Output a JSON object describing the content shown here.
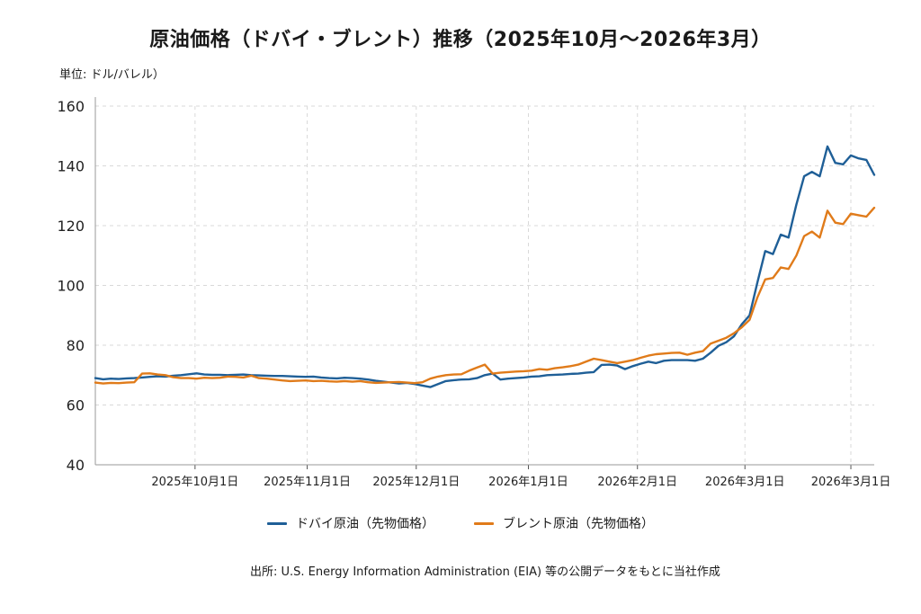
{
  "title": "原油価格（ドバイ・ブレント）推移（2025年10月〜2026年3月）",
  "unit_label": "単位: ドル/バレル）",
  "source": "出所: U.S. Energy Information Administration (EIA) 等の公開データをもとに当社作成",
  "colors": {
    "dubai": "#1f5f97",
    "brent": "#e07b1a",
    "grid": "#d9d9d9",
    "axis": "#555555"
  },
  "chart_data": {
    "type": "line",
    "title": "原油価格（ドバイ・ブレント）推移（2025年10月〜2026年3月）",
    "xlabel": "",
    "ylabel": "単位: ドル/バレル）",
    "ylim": [
      40,
      160
    ],
    "yticks": [
      40,
      60,
      80,
      100,
      120,
      140,
      160
    ],
    "xlim": [
      0,
      100
    ],
    "xticks": [
      {
        "x": 12.8,
        "label": "2025年10月1日"
      },
      {
        "x": 27.2,
        "label": "2025年11月1日"
      },
      {
        "x": 41.2,
        "label": "2025年12月1日"
      },
      {
        "x": 55.6,
        "label": "2026年1月1日"
      },
      {
        "x": 69.6,
        "label": "2026年2月1日"
      },
      {
        "x": 83.4,
        "label": "2026年3月1日"
      },
      {
        "x": 97.0,
        "label": "2026年3月1日"
      }
    ],
    "grid": true,
    "legend_position": "bottom",
    "series": [
      {
        "name": "ドバイ原油（先物価格）",
        "color": "#1f5f97",
        "x": [
          0,
          1,
          2,
          3,
          4,
          5,
          6,
          7,
          8,
          9,
          10,
          11,
          12,
          13,
          14,
          15,
          16,
          17,
          18,
          19,
          20,
          21,
          22,
          23,
          24,
          25,
          26,
          27,
          28,
          29,
          30,
          31,
          32,
          33,
          34,
          35,
          36,
          37,
          38,
          39,
          40,
          41,
          42,
          43,
          44,
          45,
          46,
          47,
          48,
          49,
          50,
          51,
          52,
          53,
          54,
          55,
          56,
          57,
          58,
          59,
          60,
          61,
          62,
          63,
          64,
          65,
          66,
          67,
          68,
          69,
          70,
          71,
          72,
          73,
          74,
          75,
          76,
          77,
          78,
          79,
          80,
          81,
          82,
          83,
          84,
          85,
          86,
          87,
          88,
          89,
          90,
          91,
          92,
          93,
          94,
          95,
          96,
          97,
          98,
          99,
          100
        ],
        "y": [
          69,
          68.6,
          68.8,
          68.7,
          68.9,
          69,
          69.2,
          69.4,
          69.6,
          69.5,
          69.8,
          70,
          70.3,
          70.6,
          70.2,
          70.1,
          70.1,
          70,
          70.1,
          70.2,
          70,
          69.9,
          69.8,
          69.7,
          69.7,
          69.6,
          69.5,
          69.4,
          69.5,
          69.2,
          69,
          68.9,
          69.1,
          69,
          68.8,
          68.5,
          68.1,
          67.8,
          67.5,
          67.2,
          67.4,
          67,
          66.5,
          66,
          67,
          68,
          68.3,
          68.5,
          68.6,
          69,
          70,
          70.5,
          68.5,
          68.8,
          69,
          69.2,
          69.5,
          69.6,
          70,
          70.1,
          70.2,
          70.4,
          70.5,
          70.8,
          71,
          73.4,
          73.5,
          73.2,
          72,
          73,
          73.8,
          74.5,
          74,
          74.8,
          75,
          75,
          75,
          74.8,
          75.5,
          77.5,
          79.8,
          81,
          83,
          87,
          90,
          101,
          111.5,
          110.5,
          117,
          116,
          127,
          136.5,
          138,
          136.5,
          146.5,
          141,
          140.5,
          143.5,
          142.5,
          142,
          137
        ]
      },
      {
        "name": "ブレント原油（先物価格）",
        "color": "#e07b1a",
        "x": [
          0,
          1,
          2,
          3,
          4,
          5,
          6,
          7,
          8,
          9,
          10,
          11,
          12,
          13,
          14,
          15,
          16,
          17,
          18,
          19,
          20,
          21,
          22,
          23,
          24,
          25,
          26,
          27,
          28,
          29,
          30,
          31,
          32,
          33,
          34,
          35,
          36,
          37,
          38,
          39,
          40,
          41,
          42,
          43,
          44,
          45,
          46,
          47,
          48,
          49,
          50,
          51,
          52,
          53,
          54,
          55,
          56,
          57,
          58,
          59,
          60,
          61,
          62,
          63,
          64,
          65,
          66,
          67,
          68,
          69,
          70,
          71,
          72,
          73,
          74,
          75,
          76,
          77,
          78,
          79,
          80,
          81,
          82,
          83,
          84,
          85,
          86,
          87,
          88,
          89,
          90,
          91,
          92,
          93,
          94,
          95,
          96,
          97,
          98,
          99,
          100
        ],
        "y": [
          67.5,
          67.2,
          67.4,
          67.3,
          67.5,
          67.6,
          70.5,
          70.6,
          70.2,
          70,
          69.3,
          69,
          69,
          68.8,
          69.1,
          69,
          69.1,
          69.5,
          69.4,
          69.2,
          69.8,
          69,
          68.8,
          68.5,
          68.2,
          68,
          68.1,
          68.2,
          68,
          68.1,
          67.9,
          67.8,
          68,
          67.8,
          68,
          67.6,
          67.4,
          67.5,
          67.6,
          67.7,
          67.5,
          67.3,
          67.6,
          68.8,
          69.5,
          70,
          70.2,
          70.3,
          71.5,
          72.5,
          73.5,
          70.5,
          70.8,
          71,
          71.2,
          71.3,
          71.5,
          72,
          71.8,
          72.3,
          72.6,
          73,
          73.5,
          74.5,
          75.5,
          75,
          74.5,
          74,
          74.5,
          75,
          75.8,
          76.5,
          77,
          77.2,
          77.4,
          77.5,
          76.8,
          77.5,
          78,
          80.5,
          81.5,
          82.5,
          84,
          86,
          88.5,
          96,
          102,
          102.5,
          106,
          105.5,
          110,
          116.5,
          118,
          116,
          125,
          121,
          120.5,
          124,
          123.5,
          123,
          126
        ]
      }
    ]
  }
}
